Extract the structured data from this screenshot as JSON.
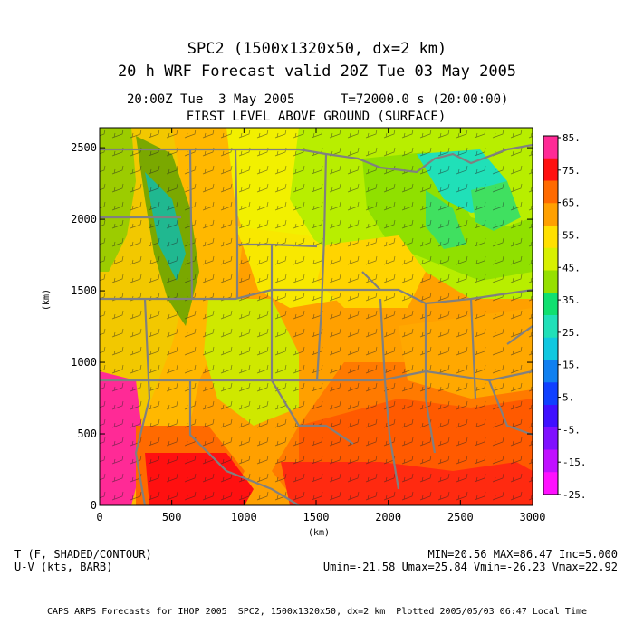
{
  "title": {
    "line1": "SPC2 (1500x1320x50, dx=2 km)",
    "line2": "20 h WRF Forecast valid 20Z Tue 03 May 2005"
  },
  "subtitle": {
    "line1": "20:00Z Tue  3 May 2005      T=72000.0 s (20:00:00)",
    "line2": "FIRST LEVEL ABOVE GROUND (SURFACE)"
  },
  "axes": {
    "x": {
      "label": "(km)",
      "ticks": [
        "0",
        "500",
        "1000",
        "1500",
        "2000",
        "2500",
        "3000"
      ],
      "range": [
        0,
        3000
      ]
    },
    "y": {
      "label": "(km)",
      "ticks": [
        "0",
        "500",
        "1000",
        "1500",
        "2000",
        "2500"
      ],
      "range": [
        0,
        2640
      ]
    }
  },
  "colorbar": {
    "labels": [
      "85.",
      "75.",
      "65.",
      "55.",
      "45.",
      "35.",
      "25.",
      "15.",
      "5.",
      "-5.",
      "-15.",
      "-25."
    ],
    "colors": [
      "#ff2a96",
      "#ff1010",
      "#ff6a00",
      "#ffa000",
      "#ffe000",
      "#d8f000",
      "#96e000",
      "#10e070",
      "#20e0b8",
      "#10c8e0",
      "#1080f0",
      "#1040ff",
      "#4010ff",
      "#8010ff",
      "#c010ff",
      "#ff10ff"
    ]
  },
  "footer": {
    "left1": "T (F, SHADED/CONTOUR)",
    "left2": "U-V (kts, BARB)",
    "right1": "MIN=20.56 MAX=86.47 Inc=5.000",
    "right2": "Umin=-21.58 Umax=25.84 Vmin=-26.23 Vmax=22.92"
  },
  "credit": "CAPS ARPS Forecasts for IHOP 2005  SPC2, 1500x1320x50, dx=2 km  Plotted 2005/05/03 06:47 Local Time"
}
